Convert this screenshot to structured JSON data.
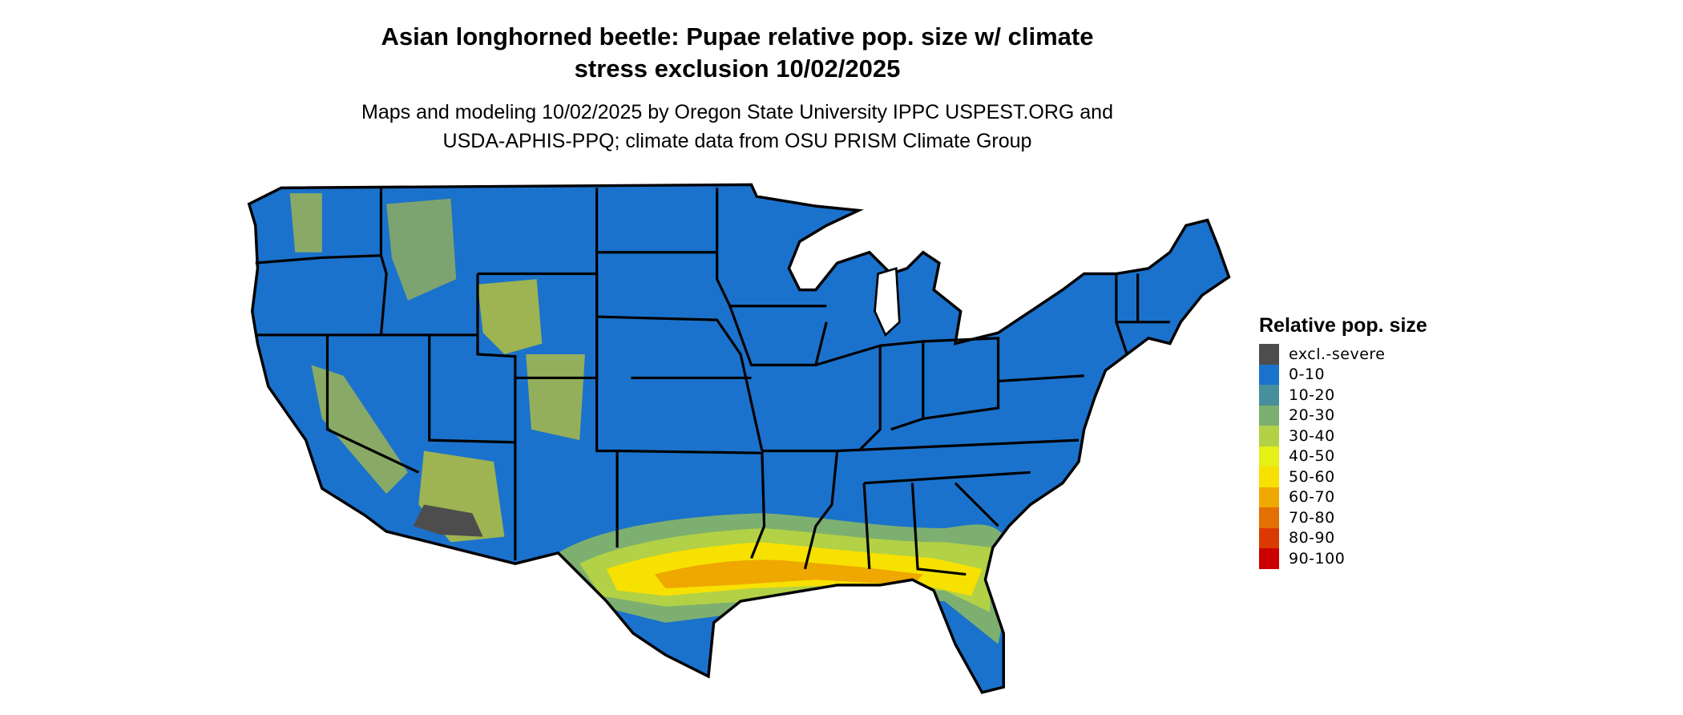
{
  "title_line1": "Asian longhorned beetle: Pupae relative pop. size w/ climate",
  "title_line2": "stress exclusion 10/02/2025",
  "subtitle_line1": "Maps and modeling 10/02/2025 by Oregon State University IPPC USPEST.ORG and",
  "subtitle_line2": "USDA-APHIS-PPQ; climate data from OSU PRISM Climate Group",
  "legend": {
    "title": "Relative pop. size",
    "items": [
      {
        "label": "excl.-severe",
        "color": "#4d4d4d"
      },
      {
        "label": "0-10",
        "color": "#1b72cc"
      },
      {
        "label": "10-20",
        "color": "#478f9c"
      },
      {
        "label": "20-30",
        "color": "#7daf70"
      },
      {
        "label": "30-40",
        "color": "#b2d146"
      },
      {
        "label": "40-50",
        "color": "#e4f016"
      },
      {
        "label": "50-60",
        "color": "#f7e100"
      },
      {
        "label": "60-70",
        "color": "#eea800"
      },
      {
        "label": "70-80",
        "color": "#e37000"
      },
      {
        "label": "80-90",
        "color": "#da3900"
      },
      {
        "label": "90-100",
        "color": "#cc0000"
      }
    ]
  }
}
